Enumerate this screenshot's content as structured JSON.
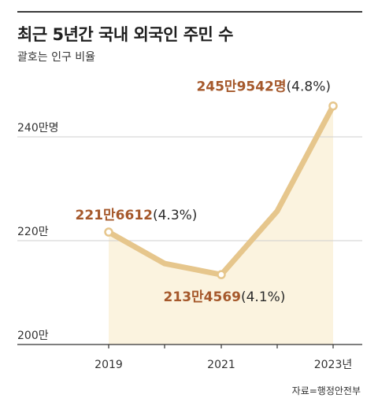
{
  "header": {
    "title": "최근 5년간 국내 외국인 주민 수",
    "subtitle": "괄호는 인구 비율"
  },
  "source": "자료=행정안전부",
  "colors": {
    "line": "#e6c68c",
    "area": "#fbf3df",
    "highlight": "#a5582b",
    "grid": "#cfcfcf",
    "axis": "#333333",
    "marker_fill": "#ffffff"
  },
  "chart_data": {
    "type": "line",
    "x": [
      2019,
      2020,
      2021,
      2022,
      2023
    ],
    "values": [
      2216612,
      2156000,
      2134569,
      2257000,
      2459542
    ],
    "ylim": [
      2000000,
      2500000
    ],
    "y_ticks": [
      {
        "value": 2400000,
        "label": "240만명"
      },
      {
        "value": 2200000,
        "label": "220만"
      },
      {
        "value": 2000000,
        "label": "200만"
      }
    ],
    "x_tick_labels": [
      {
        "x": 2019,
        "label": "2019"
      },
      {
        "x": 2021,
        "label": "2021"
      },
      {
        "x": 2023,
        "label": "2023년"
      }
    ],
    "annotations": [
      {
        "x": 2019,
        "value_text": "221만6612",
        "pct_text": "(4.3%)",
        "anchor": "above"
      },
      {
        "x": 2021,
        "value_text": "213만4569",
        "pct_text": "(4.1%)",
        "anchor": "below"
      },
      {
        "x": 2023,
        "value_text": "245만9542명",
        "pct_text": "(4.8%)",
        "anchor": "above-left"
      }
    ],
    "markers_at": [
      2019,
      2021,
      2023
    ],
    "grid": true
  }
}
